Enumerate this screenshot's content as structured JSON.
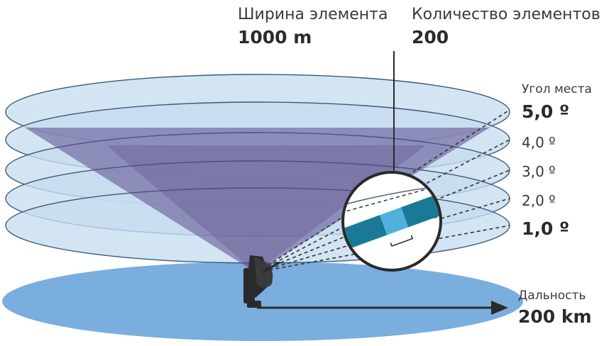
{
  "element_width": {
    "label": "Ширина элемента",
    "value": "1000 m"
  },
  "element_count": {
    "label": "Количество элементов",
    "value": "200"
  },
  "elevation": {
    "title": "Угол места",
    "angles": [
      {
        "label": "5,0 º",
        "emphasis": true
      },
      {
        "label": "4,0 º",
        "emphasis": false
      },
      {
        "label": "3,0 º",
        "emphasis": false
      },
      {
        "label": "2,0 º",
        "emphasis": false
      },
      {
        "label": "1,0 º",
        "emphasis": true
      }
    ]
  },
  "range": {
    "label": "Дальность",
    "value": "200 km"
  },
  "colors": {
    "ground": "#7aaede",
    "layer_fill": "#c7dcf0",
    "layer_stroke": "#3a5a78",
    "cone": "#5b4a8c",
    "cell_dark": "#1a7a96",
    "cell_light": "#4fb2dc",
    "radar": "#2a2a2a"
  }
}
